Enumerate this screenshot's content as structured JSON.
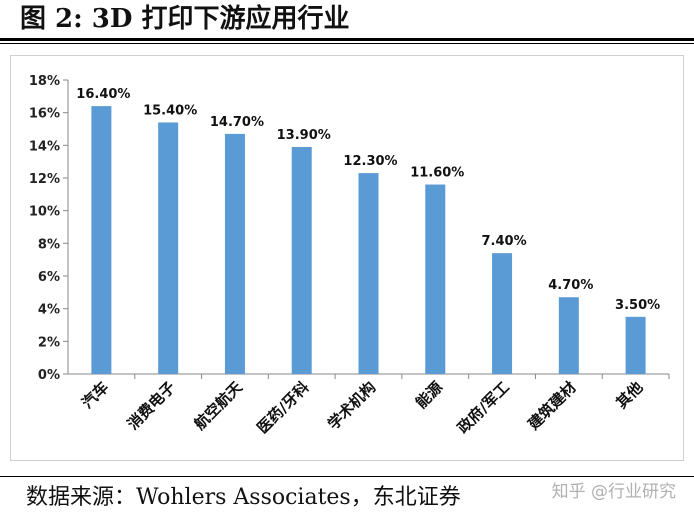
{
  "figure": {
    "title": "图  2:  3D 打印下游应用行业",
    "source": "数据来源：Wohlers Associates，东北证券",
    "watermark": "知乎 @行业研究"
  },
  "chart_data": {
    "type": "bar",
    "categories": [
      "汽车",
      "消费电子",
      "航空航天",
      "医药/牙科",
      "学术机构",
      "能源",
      "政府/军工",
      "建筑建材",
      "其他"
    ],
    "values": [
      16.4,
      15.4,
      14.7,
      13.9,
      12.3,
      11.6,
      7.4,
      4.7,
      3.5
    ],
    "data_labels": [
      "16.40%",
      "15.40%",
      "14.70%",
      "13.90%",
      "12.30%",
      "11.60%",
      "7.40%",
      "4.70%",
      "3.50%"
    ],
    "yticks": [
      "0%",
      "2%",
      "4%",
      "6%",
      "8%",
      "10%",
      "12%",
      "14%",
      "16%",
      "18%"
    ],
    "ylim": [
      0,
      18
    ],
    "ystep": 2,
    "bar_color": "#5b9bd5",
    "grid": false,
    "legend": "none",
    "title": "",
    "xlabel": "",
    "ylabel": ""
  }
}
